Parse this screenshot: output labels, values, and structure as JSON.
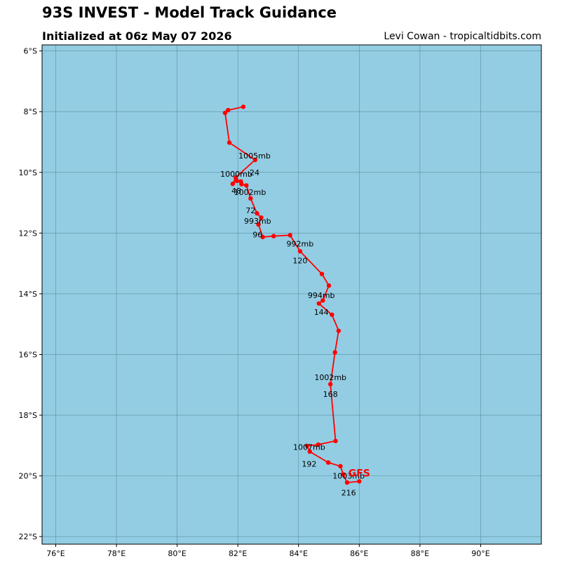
{
  "title": "93S INVEST - Model Track Guidance",
  "subtitle": "Initialized at 06z May 07 2026",
  "credit": "Levi Cowan - tropicaltidbits.com",
  "colors": {
    "ocean": "#93cde3",
    "grid": "#4a7f92",
    "track": "#ff0000"
  },
  "chart_data": {
    "type": "line",
    "x_label_unit": "longitude",
    "y_label_unit": "latitude",
    "xlim": [
      75.55,
      92.0
    ],
    "ylim": [
      -22.25,
      -5.8
    ],
    "x_ticks": [
      76,
      78,
      80,
      82,
      84,
      86,
      88,
      90
    ],
    "x_tick_labels": [
      "76°E",
      "78°E",
      "80°E",
      "82°E",
      "84°E",
      "86°E",
      "88°E",
      "90°E"
    ],
    "y_ticks": [
      -6,
      -8,
      -10,
      -12,
      -14,
      -16,
      -18,
      -20,
      -22
    ],
    "y_tick_labels": [
      "6°S",
      "8°S",
      "10°S",
      "12°S",
      "14°S",
      "16°S",
      "18°S",
      "20°S",
      "22°S"
    ],
    "grid": true,
    "series": [
      {
        "name": "GFS",
        "points": [
          [
            82.18,
            -7.84
          ],
          [
            81.68,
            -7.95
          ],
          [
            81.58,
            -8.04
          ],
          [
            81.72,
            -9.02
          ],
          [
            82.57,
            -9.59
          ],
          [
            81.93,
            -10.17
          ],
          [
            81.83,
            -10.38
          ],
          [
            81.97,
            -10.28
          ],
          [
            82.1,
            -10.3
          ],
          [
            82.12,
            -10.39
          ],
          [
            82.28,
            -10.43
          ],
          [
            82.42,
            -10.86
          ],
          [
            82.63,
            -11.35
          ],
          [
            82.77,
            -11.49
          ],
          [
            82.68,
            -11.72
          ],
          [
            82.82,
            -12.13
          ],
          [
            83.18,
            -12.1
          ],
          [
            83.72,
            -12.07
          ],
          [
            84.05,
            -12.6
          ],
          [
            84.77,
            -13.35
          ],
          [
            85.0,
            -13.73
          ],
          [
            84.8,
            -14.22
          ],
          [
            84.67,
            -14.32
          ],
          [
            85.1,
            -14.69
          ],
          [
            85.32,
            -15.22
          ],
          [
            85.2,
            -15.93
          ],
          [
            85.05,
            -16.98
          ],
          [
            85.22,
            -18.85
          ],
          [
            84.65,
            -18.97
          ],
          [
            84.28,
            -19.01
          ],
          [
            84.37,
            -19.2
          ],
          [
            84.98,
            -19.56
          ],
          [
            85.38,
            -19.68
          ],
          [
            85.47,
            -19.95
          ],
          [
            85.6,
            -20.22
          ],
          [
            86.0,
            -20.18
          ]
        ],
        "annotations": [
          {
            "text": "1005mb",
            "lon": 82.55,
            "lat": -9.45
          },
          {
            "text": "24",
            "lon": 82.55,
            "lat": -10.0
          },
          {
            "text": "1000mb",
            "lon": 81.95,
            "lat": -10.05
          },
          {
            "text": "48",
            "lon": 81.95,
            "lat": -10.6
          },
          {
            "text": "1002mb",
            "lon": 82.4,
            "lat": -10.65
          },
          {
            "text": "72",
            "lon": 82.42,
            "lat": -11.25
          },
          {
            "text": "993mb",
            "lon": 82.65,
            "lat": -11.6
          },
          {
            "text": "96",
            "lon": 82.65,
            "lat": -12.05
          },
          {
            "text": "992mb",
            "lon": 84.05,
            "lat": -12.35
          },
          {
            "text": "120",
            "lon": 84.05,
            "lat": -12.9
          },
          {
            "text": "994mb",
            "lon": 84.75,
            "lat": -14.05
          },
          {
            "text": "144",
            "lon": 84.75,
            "lat": -14.6
          },
          {
            "text": "1002mb",
            "lon": 85.05,
            "lat": -16.75
          },
          {
            "text": "168",
            "lon": 85.05,
            "lat": -17.3
          },
          {
            "text": "1007mb",
            "lon": 84.35,
            "lat": -19.05
          },
          {
            "text": "192",
            "lon": 84.35,
            "lat": -19.6
          },
          {
            "text": "1003mb",
            "lon": 85.65,
            "lat": -20.0
          },
          {
            "text": "216",
            "lon": 85.65,
            "lat": -20.55
          }
        ],
        "model_label": {
          "text": "GFS",
          "lon": 86.0,
          "lat": -19.9
        }
      }
    ]
  }
}
